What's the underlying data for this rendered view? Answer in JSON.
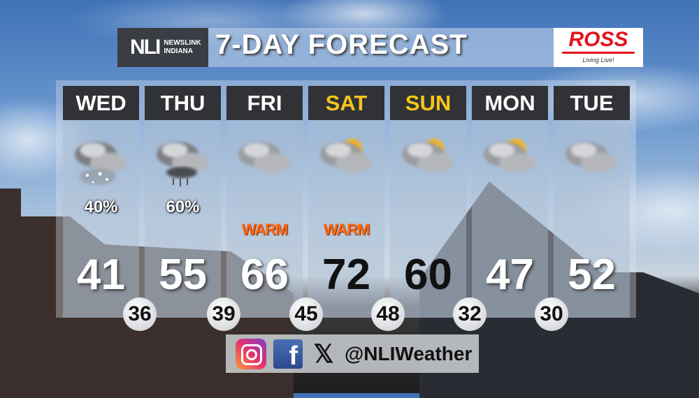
{
  "header": {
    "logo_main": "NLI",
    "logo_sub_1": "NEWSLINK",
    "logo_sub_2": "INDIANA",
    "title": "7-DAY FORECAST",
    "sponsor": "ROSS",
    "sponsor_tagline": "Living Live!"
  },
  "days": [
    {
      "day": "WED",
      "icon": "rain-snow-cloud-icon",
      "precip": "40%",
      "note": "",
      "high": "41",
      "weekend": false
    },
    {
      "day": "THU",
      "icon": "rain-cloud-icon",
      "precip": "60%",
      "note": "",
      "high": "55",
      "weekend": false
    },
    {
      "day": "FRI",
      "icon": "cloudy-icon",
      "precip": "",
      "note": "WARM",
      "high": "66",
      "weekend": false
    },
    {
      "day": "SAT",
      "icon": "partly-cloudy-icon",
      "precip": "",
      "note": "WARM",
      "high": "72",
      "weekend": true
    },
    {
      "day": "SUN",
      "icon": "partly-cloudy-icon",
      "precip": "",
      "note": "",
      "high": "60",
      "weekend": true
    },
    {
      "day": "MON",
      "icon": "partly-cloudy-icon",
      "precip": "",
      "note": "",
      "high": "47",
      "weekend": false
    },
    {
      "day": "TUE",
      "icon": "cloudy-icon",
      "precip": "",
      "note": "",
      "high": "52",
      "weekend": false
    }
  ],
  "lows": [
    "36",
    "39",
    "45",
    "48",
    "32",
    "30"
  ],
  "colors": {
    "weekend_day": "#f5c518",
    "warm": "#ff6a10",
    "header_bg": "#303236"
  },
  "social": {
    "icons": [
      "instagram-icon",
      "facebook-icon",
      "x-icon"
    ],
    "handle": "@NLIWeather"
  }
}
